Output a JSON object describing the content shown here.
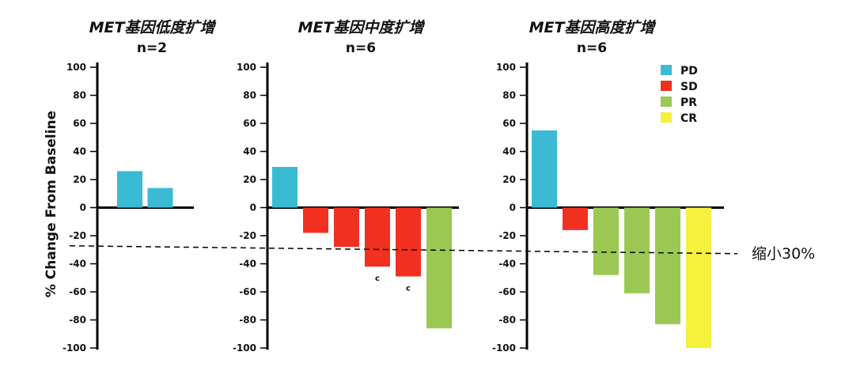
{
  "chart_data": {
    "type": "bar",
    "ylabel": "% Change From Baseline",
    "ylim": [
      -100,
      100
    ],
    "yticks": [
      "100",
      "80",
      "60",
      "40",
      "20",
      "0",
      "-20",
      "-40",
      "-60",
      "-80",
      "-100"
    ],
    "threshold": {
      "value": -30,
      "label": "缩小30%"
    },
    "legend": [
      {
        "label": "PD",
        "color": "#3bbbd3"
      },
      {
        "label": "SD",
        "color": "#f23020"
      },
      {
        "label": "PR",
        "color": "#9bc853"
      },
      {
        "label": "CR",
        "color": "#f5f13c"
      }
    ],
    "panels": [
      {
        "title": "MET基因低度扩增",
        "n_label": "n=2",
        "bars": [
          {
            "value": 26,
            "response": "PD",
            "note": ""
          },
          {
            "value": 14,
            "response": "PD",
            "note": ""
          }
        ]
      },
      {
        "title": "MET基因中度扩增",
        "n_label": "n=6",
        "bars": [
          {
            "value": 29,
            "response": "PD",
            "note": ""
          },
          {
            "value": -18,
            "response": "SD",
            "note": ""
          },
          {
            "value": -28,
            "response": "SD",
            "note": ""
          },
          {
            "value": -42,
            "response": "SD",
            "note": "c"
          },
          {
            "value": -49,
            "response": "SD",
            "note": "c"
          },
          {
            "value": -86,
            "response": "PR",
            "note": ""
          }
        ]
      },
      {
        "title": "MET基因高度扩增",
        "n_label": "n=6",
        "bars": [
          {
            "value": 55,
            "response": "PD",
            "note": ""
          },
          {
            "value": -16,
            "response": "SD",
            "note": ""
          },
          {
            "value": -48,
            "response": "PR",
            "note": ""
          },
          {
            "value": -61,
            "response": "PR",
            "note": ""
          },
          {
            "value": -83,
            "response": "PR",
            "note": ""
          },
          {
            "value": -100,
            "response": "CR",
            "note": ""
          }
        ]
      }
    ]
  }
}
